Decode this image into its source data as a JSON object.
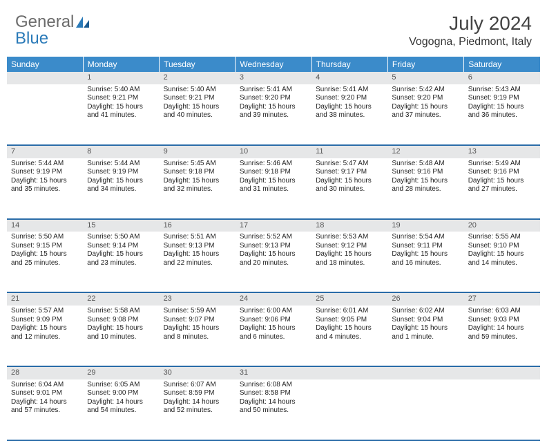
{
  "logo": {
    "text1": "General",
    "text2": "Blue"
  },
  "title": "July 2024",
  "location": "Vogogna, Piedmont, Italy",
  "colors": {
    "header_bg": "#3b8bca",
    "row_divider": "#2a6ca8",
    "daynum_bg": "#e6e7e8",
    "logo_gray": "#6b6b6b",
    "logo_blue": "#2a7ab8"
  },
  "weekdays": [
    "Sunday",
    "Monday",
    "Tuesday",
    "Wednesday",
    "Thursday",
    "Friday",
    "Saturday"
  ],
  "weeks": [
    [
      {
        "n": "",
        "lines": []
      },
      {
        "n": "1",
        "lines": [
          "Sunrise: 5:40 AM",
          "Sunset: 9:21 PM",
          "Daylight: 15 hours and 41 minutes."
        ]
      },
      {
        "n": "2",
        "lines": [
          "Sunrise: 5:40 AM",
          "Sunset: 9:21 PM",
          "Daylight: 15 hours and 40 minutes."
        ]
      },
      {
        "n": "3",
        "lines": [
          "Sunrise: 5:41 AM",
          "Sunset: 9:20 PM",
          "Daylight: 15 hours and 39 minutes."
        ]
      },
      {
        "n": "4",
        "lines": [
          "Sunrise: 5:41 AM",
          "Sunset: 9:20 PM",
          "Daylight: 15 hours and 38 minutes."
        ]
      },
      {
        "n": "5",
        "lines": [
          "Sunrise: 5:42 AM",
          "Sunset: 9:20 PM",
          "Daylight: 15 hours and 37 minutes."
        ]
      },
      {
        "n": "6",
        "lines": [
          "Sunrise: 5:43 AM",
          "Sunset: 9:19 PM",
          "Daylight: 15 hours and 36 minutes."
        ]
      }
    ],
    [
      {
        "n": "7",
        "lines": [
          "Sunrise: 5:44 AM",
          "Sunset: 9:19 PM",
          "Daylight: 15 hours and 35 minutes."
        ]
      },
      {
        "n": "8",
        "lines": [
          "Sunrise: 5:44 AM",
          "Sunset: 9:19 PM",
          "Daylight: 15 hours and 34 minutes."
        ]
      },
      {
        "n": "9",
        "lines": [
          "Sunrise: 5:45 AM",
          "Sunset: 9:18 PM",
          "Daylight: 15 hours and 32 minutes."
        ]
      },
      {
        "n": "10",
        "lines": [
          "Sunrise: 5:46 AM",
          "Sunset: 9:18 PM",
          "Daylight: 15 hours and 31 minutes."
        ]
      },
      {
        "n": "11",
        "lines": [
          "Sunrise: 5:47 AM",
          "Sunset: 9:17 PM",
          "Daylight: 15 hours and 30 minutes."
        ]
      },
      {
        "n": "12",
        "lines": [
          "Sunrise: 5:48 AM",
          "Sunset: 9:16 PM",
          "Daylight: 15 hours and 28 minutes."
        ]
      },
      {
        "n": "13",
        "lines": [
          "Sunrise: 5:49 AM",
          "Sunset: 9:16 PM",
          "Daylight: 15 hours and 27 minutes."
        ]
      }
    ],
    [
      {
        "n": "14",
        "lines": [
          "Sunrise: 5:50 AM",
          "Sunset: 9:15 PM",
          "Daylight: 15 hours and 25 minutes."
        ]
      },
      {
        "n": "15",
        "lines": [
          "Sunrise: 5:50 AM",
          "Sunset: 9:14 PM",
          "Daylight: 15 hours and 23 minutes."
        ]
      },
      {
        "n": "16",
        "lines": [
          "Sunrise: 5:51 AM",
          "Sunset: 9:13 PM",
          "Daylight: 15 hours and 22 minutes."
        ]
      },
      {
        "n": "17",
        "lines": [
          "Sunrise: 5:52 AM",
          "Sunset: 9:13 PM",
          "Daylight: 15 hours and 20 minutes."
        ]
      },
      {
        "n": "18",
        "lines": [
          "Sunrise: 5:53 AM",
          "Sunset: 9:12 PM",
          "Daylight: 15 hours and 18 minutes."
        ]
      },
      {
        "n": "19",
        "lines": [
          "Sunrise: 5:54 AM",
          "Sunset: 9:11 PM",
          "Daylight: 15 hours and 16 minutes."
        ]
      },
      {
        "n": "20",
        "lines": [
          "Sunrise: 5:55 AM",
          "Sunset: 9:10 PM",
          "Daylight: 15 hours and 14 minutes."
        ]
      }
    ],
    [
      {
        "n": "21",
        "lines": [
          "Sunrise: 5:57 AM",
          "Sunset: 9:09 PM",
          "Daylight: 15 hours and 12 minutes."
        ]
      },
      {
        "n": "22",
        "lines": [
          "Sunrise: 5:58 AM",
          "Sunset: 9:08 PM",
          "Daylight: 15 hours and 10 minutes."
        ]
      },
      {
        "n": "23",
        "lines": [
          "Sunrise: 5:59 AM",
          "Sunset: 9:07 PM",
          "Daylight: 15 hours and 8 minutes."
        ]
      },
      {
        "n": "24",
        "lines": [
          "Sunrise: 6:00 AM",
          "Sunset: 9:06 PM",
          "Daylight: 15 hours and 6 minutes."
        ]
      },
      {
        "n": "25",
        "lines": [
          "Sunrise: 6:01 AM",
          "Sunset: 9:05 PM",
          "Daylight: 15 hours and 4 minutes."
        ]
      },
      {
        "n": "26",
        "lines": [
          "Sunrise: 6:02 AM",
          "Sunset: 9:04 PM",
          "Daylight: 15 hours and 1 minute."
        ]
      },
      {
        "n": "27",
        "lines": [
          "Sunrise: 6:03 AM",
          "Sunset: 9:03 PM",
          "Daylight: 14 hours and 59 minutes."
        ]
      }
    ],
    [
      {
        "n": "28",
        "lines": [
          "Sunrise: 6:04 AM",
          "Sunset: 9:01 PM",
          "Daylight: 14 hours and 57 minutes."
        ]
      },
      {
        "n": "29",
        "lines": [
          "Sunrise: 6:05 AM",
          "Sunset: 9:00 PM",
          "Daylight: 14 hours and 54 minutes."
        ]
      },
      {
        "n": "30",
        "lines": [
          "Sunrise: 6:07 AM",
          "Sunset: 8:59 PM",
          "Daylight: 14 hours and 52 minutes."
        ]
      },
      {
        "n": "31",
        "lines": [
          "Sunrise: 6:08 AM",
          "Sunset: 8:58 PM",
          "Daylight: 14 hours and 50 minutes."
        ]
      },
      {
        "n": "",
        "lines": []
      },
      {
        "n": "",
        "lines": []
      },
      {
        "n": "",
        "lines": []
      }
    ]
  ]
}
